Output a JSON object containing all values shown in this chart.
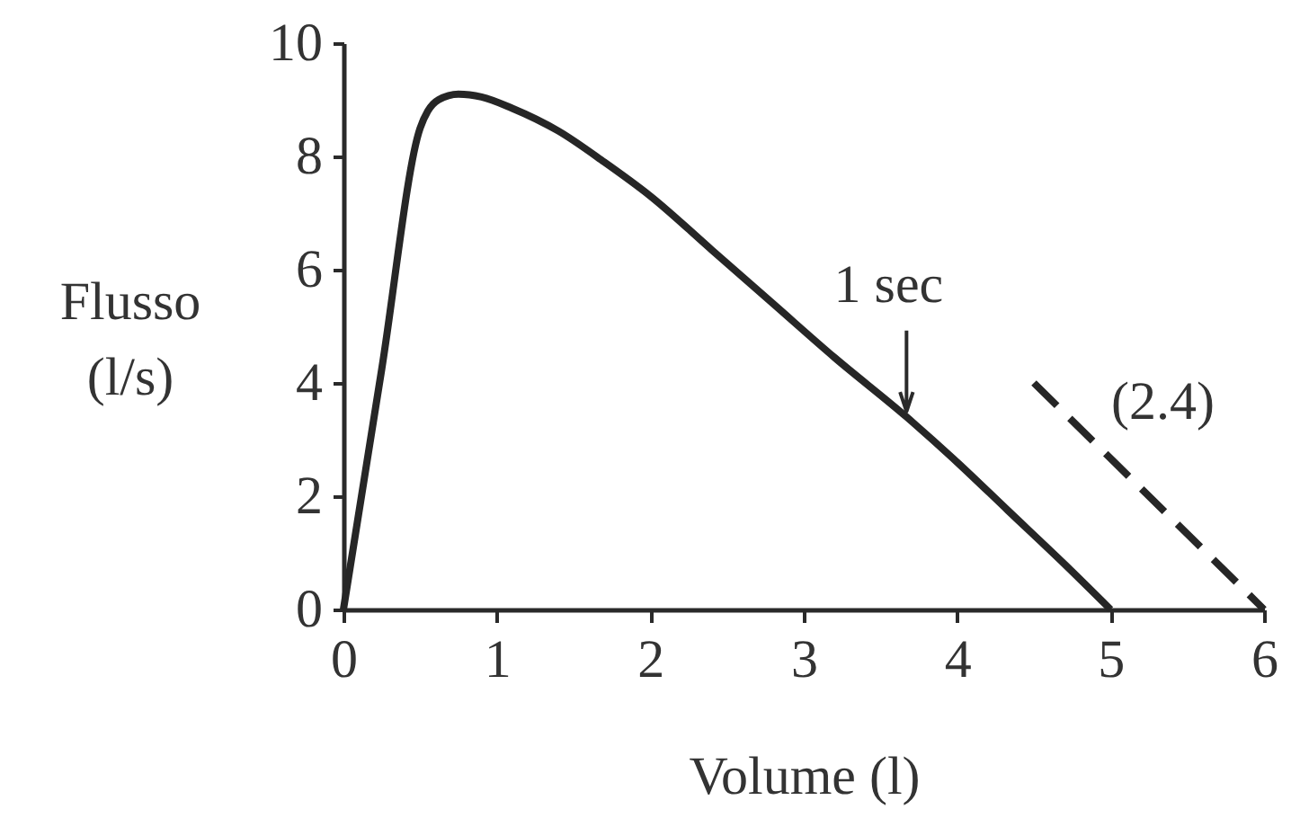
{
  "chart_data": {
    "type": "line",
    "xlabel": "Volume (l)",
    "ylabel": "Flusso\n(l/s)",
    "xlim": [
      0,
      6
    ],
    "ylim": [
      0,
      10
    ],
    "xticks": [
      0,
      1,
      2,
      3,
      4,
      5,
      6
    ],
    "yticks": [
      0,
      2,
      4,
      6,
      8,
      10
    ],
    "series": [
      {
        "color": "#262626",
        "line_style": "solid",
        "x": [
          0,
          0.25,
          0.5,
          0.55,
          0.62,
          0.75,
          0.9,
          1.1,
          1.4,
          1.7,
          2.0,
          2.4,
          2.8,
          3.2,
          3.67,
          4.0,
          4.33,
          4.7,
          5.0
        ],
        "values": [
          0,
          4.25,
          8.5,
          8.8,
          9.0,
          9.1,
          9.05,
          8.85,
          8.45,
          7.9,
          7.3,
          6.35,
          5.4,
          4.45,
          3.4,
          2.6,
          1.75,
          0.8,
          0
        ]
      },
      {
        "name": "(2.4)",
        "color": "#262626",
        "line_style": "dashed",
        "x": [
          4.5,
          6.0
        ],
        "values": [
          4.0,
          0
        ]
      }
    ],
    "annotations": [
      {
        "text": "1 sec",
        "x": 3.67,
        "y": 3.4
      }
    ]
  }
}
